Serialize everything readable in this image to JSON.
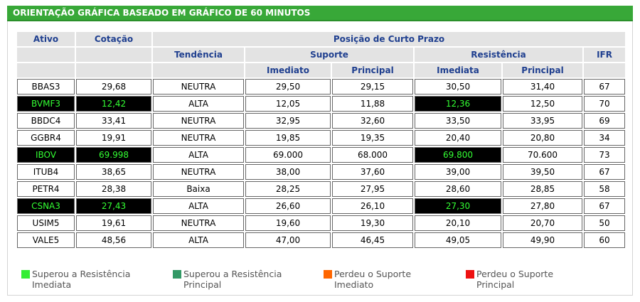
{
  "header": {
    "title": "ORIENTAÇÃO GRÁFICA BASEADO EM GRÁFICO DE 60 MINUTOS"
  },
  "table": {
    "col_ativo": "Ativo",
    "col_cotacao": "Cotação",
    "group_title": "Posição de Curto Prazo",
    "col_tendencia": "Tendência",
    "col_suporte": "Suporte",
    "col_resistencia": "Resistência",
    "col_ifr": "IFR",
    "sub_suporte_imediato": "Imediato",
    "sub_suporte_principal": "Principal",
    "sub_resistencia_imediata": "Imediata",
    "sub_resistencia_principal": "Principal",
    "rows": [
      {
        "ativo": "BBAS3",
        "cotacao": "29,68",
        "tendencia": "NEUTRA",
        "sup_imediato": "29,50",
        "sup_principal": "29,15",
        "res_imediata": "30,50",
        "res_principal": "31,40",
        "ifr": "67"
      },
      {
        "ativo": "BVMF3",
        "cotacao": "12,42",
        "tendencia": "ALTA",
        "sup_imediato": "12,05",
        "sup_principal": "11,88",
        "res_imediata": "12,36",
        "res_principal": "12,50",
        "ifr": "70"
      },
      {
        "ativo": "BBDC4",
        "cotacao": "33,41",
        "tendencia": "NEUTRA",
        "sup_imediato": "32,95",
        "sup_principal": "32,60",
        "res_imediata": "33,50",
        "res_principal": "33,95",
        "ifr": "69"
      },
      {
        "ativo": "GGBR4",
        "cotacao": "19,91",
        "tendencia": "NEUTRA",
        "sup_imediato": "19,85",
        "sup_principal": "19,35",
        "res_imediata": "20,40",
        "res_principal": "20,80",
        "ifr": "34"
      },
      {
        "ativo": "IBOV",
        "cotacao": "69.998",
        "tendencia": "ALTA",
        "sup_imediato": "69.000",
        "sup_principal": "68.000",
        "res_imediata": "69.800",
        "res_principal": "70.600",
        "ifr": "73"
      },
      {
        "ativo": "ITUB4",
        "cotacao": "38,65",
        "tendencia": "NEUTRA",
        "sup_imediato": "38,00",
        "sup_principal": "37,60",
        "res_imediata": "39,00",
        "res_principal": "39,50",
        "ifr": "67"
      },
      {
        "ativo": "PETR4",
        "cotacao": "28,38",
        "tendencia": "Baixa",
        "sup_imediato": "28,25",
        "sup_principal": "27,95",
        "res_imediata": "28,60",
        "res_principal": "28,85",
        "ifr": "58"
      },
      {
        "ativo": "CSNA3",
        "cotacao": "27,43",
        "tendencia": "ALTA",
        "sup_imediato": "26,60",
        "sup_principal": "26,10",
        "res_imediata": "27,30",
        "res_principal": "27,80",
        "ifr": "67"
      },
      {
        "ativo": "USIM5",
        "cotacao": "19,61",
        "tendencia": "NEUTRA",
        "sup_imediato": "19,60",
        "sup_principal": "19,30",
        "res_imediata": "20,10",
        "res_principal": "20,70",
        "ifr": "50"
      },
      {
        "ativo": "VALE5",
        "cotacao": "48,56",
        "tendencia": "ALTA",
        "sup_imediato": "47,00",
        "sup_principal": "46,45",
        "res_imediata": "49,05",
        "res_principal": "49,90",
        "ifr": "60"
      }
    ]
  },
  "legend": [
    {
      "color": "#33ee33",
      "line1": "Superou a Resistência",
      "line2": "Imediata"
    },
    {
      "color": "#339966",
      "line1": "Superou a Resistência",
      "line2": "Principal"
    },
    {
      "color": "#ff6600",
      "line1": "Perdeu o Suporte",
      "line2": "Imediato"
    },
    {
      "color": "#ee1111",
      "line1": "Perdeu o Suporte",
      "line2": "Principal"
    }
  ]
}
